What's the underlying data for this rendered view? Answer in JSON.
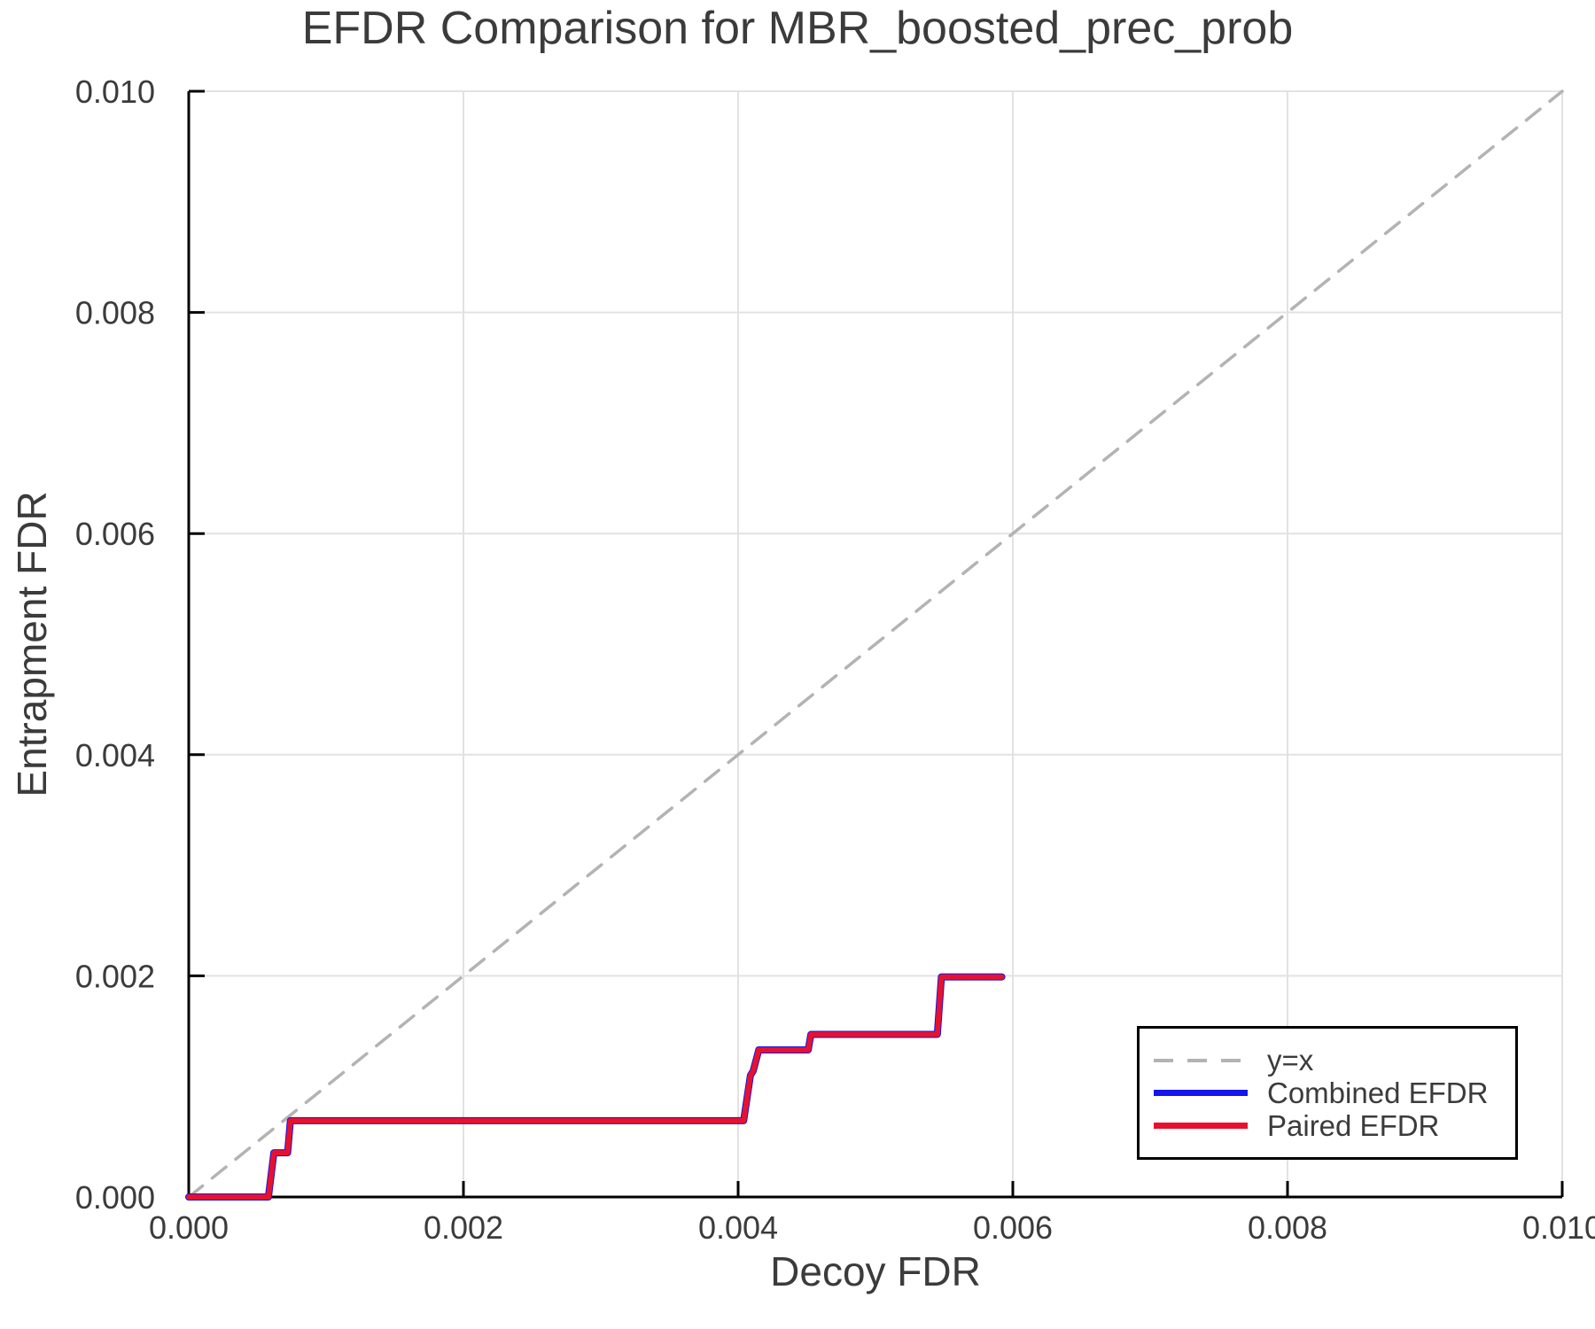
{
  "chart_data": {
    "type": "line",
    "title": "EFDR Comparison for MBR_boosted_prec_prob",
    "xlabel": "Decoy FDR",
    "ylabel": "Entrapment FDR",
    "xlim": [
      0.0,
      0.01
    ],
    "ylim": [
      0.0,
      0.01
    ],
    "grid": true,
    "legend_position": "lower right",
    "xticks": {
      "values": [
        0.0,
        0.002,
        0.004,
        0.006,
        0.008,
        0.01
      ],
      "labels": [
        "0.000",
        "0.002",
        "0.004",
        "0.006",
        "0.008",
        "0.010"
      ]
    },
    "yticks": {
      "values": [
        0.0,
        0.002,
        0.004,
        0.006,
        0.008,
        0.01
      ],
      "labels": [
        "0.000",
        "0.002",
        "0.004",
        "0.006",
        "0.008",
        "0.010"
      ]
    },
    "series": [
      {
        "name": "y=x",
        "style": "dashed",
        "color": "#b3b3b3",
        "points": [
          [
            0.0,
            0.0
          ],
          [
            0.01,
            0.01
          ]
        ]
      },
      {
        "name": "Combined EFDR",
        "style": "solid",
        "color": "#1414ee",
        "points": [
          [
            0.0,
            0.0
          ],
          [
            0.00058,
            0.0
          ],
          [
            0.00062,
            0.0004
          ],
          [
            0.00072,
            0.0004
          ],
          [
            0.00074,
            0.00069
          ],
          [
            0.00404,
            0.00069
          ],
          [
            0.00409,
            0.0011
          ],
          [
            0.00411,
            0.00114
          ],
          [
            0.00415,
            0.00133
          ],
          [
            0.00451,
            0.00133
          ],
          [
            0.00453,
            0.00147
          ],
          [
            0.00545,
            0.00147
          ],
          [
            0.00548,
            0.00199
          ],
          [
            0.00592,
            0.00199
          ]
        ]
      },
      {
        "name": "Paired EFDR",
        "style": "solid",
        "color": "#e8112d",
        "points": [
          [
            0.0,
            0.0
          ],
          [
            0.00058,
            0.0
          ],
          [
            0.00062,
            0.0004
          ],
          [
            0.00072,
            0.0004
          ],
          [
            0.00074,
            0.00069
          ],
          [
            0.00404,
            0.00069
          ],
          [
            0.00409,
            0.0011
          ],
          [
            0.00411,
            0.00114
          ],
          [
            0.00415,
            0.00133
          ],
          [
            0.00451,
            0.00133
          ],
          [
            0.00453,
            0.00147
          ],
          [
            0.00545,
            0.00147
          ],
          [
            0.00548,
            0.00199
          ],
          [
            0.00592,
            0.00199
          ]
        ]
      }
    ],
    "colors": {
      "grid": "#e2e2e2",
      "spine": "#000000",
      "text": "#3b3b3b",
      "reference": "#b3b3b3"
    }
  }
}
